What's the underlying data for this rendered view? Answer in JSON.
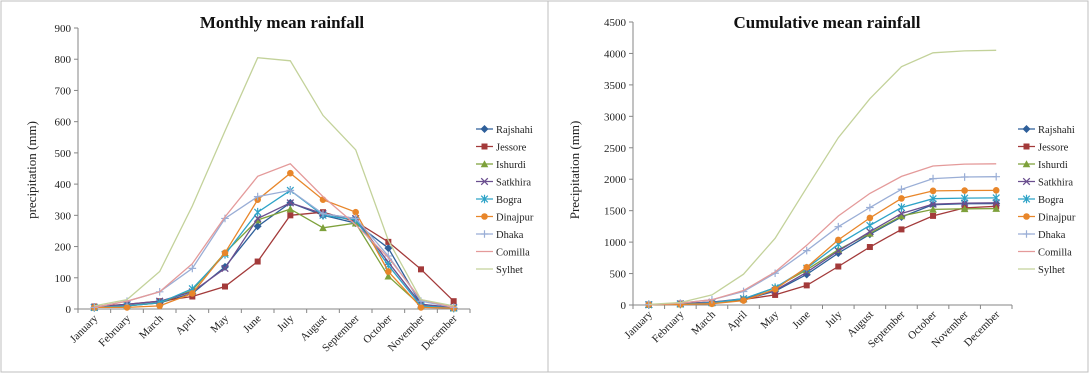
{
  "chart_data": [
    {
      "type": "line",
      "title": "Monthly mean rainfall",
      "ylabel": "precipitation (mm)",
      "ylim": [
        0,
        900
      ],
      "yticks": [
        "0",
        "100",
        "200",
        "300",
        "400",
        "500",
        "600",
        "700",
        "800",
        "900"
      ],
      "categories": [
        "January",
        "February",
        "March",
        "April",
        "May",
        "June",
        "July",
        "August",
        "September",
        "October",
        "November",
        "December"
      ],
      "grid": false,
      "legend": "right",
      "series": [
        {
          "name": "Rajshahi",
          "color": "#2e5f9a",
          "marker": "diamond",
          "values": [
            5,
            10,
            20,
            50,
            135,
            265,
            340,
            300,
            275,
            195,
            15,
            3
          ]
        },
        {
          "name": "Jessore",
          "color": "#a33a3a",
          "marker": "square",
          "values": [
            8,
            15,
            25,
            40,
            72,
            152,
            300,
            310,
            280,
            215,
            127,
            25
          ]
        },
        {
          "name": "Ishurdi",
          "color": "#7ea13b",
          "marker": "triangle",
          "values": [
            5,
            10,
            20,
            60,
            180,
            285,
            320,
            260,
            275,
            105,
            10,
            3
          ]
        },
        {
          "name": "Satkhira",
          "color": "#6b4f8f",
          "marker": "x",
          "values": [
            5,
            15,
            25,
            55,
            130,
            290,
            340,
            305,
            290,
            150,
            15,
            5
          ]
        },
        {
          "name": "Bogra",
          "color": "#2ea3c7",
          "marker": "star",
          "values": [
            5,
            10,
            20,
            65,
            175,
            310,
            380,
            300,
            285,
            140,
            10,
            3
          ]
        },
        {
          "name": "Dinajpur",
          "color": "#e8862a",
          "marker": "circle",
          "values": [
            5,
            5,
            10,
            50,
            180,
            350,
            435,
            350,
            310,
            120,
            5,
            3
          ]
        },
        {
          "name": "Dhaka",
          "color": "#9aaed6",
          "marker": "plus",
          "values": [
            5,
            25,
            55,
            130,
            290,
            360,
            380,
            305,
            290,
            170,
            25,
            5
          ]
        },
        {
          "name": "Comilla",
          "color": "#e49a9a",
          "marker": "none",
          "values": [
            5,
            25,
            55,
            145,
            295,
            425,
            465,
            360,
            270,
            165,
            30,
            5
          ]
        },
        {
          "name": "Sylhet",
          "color": "#c3d29a",
          "marker": "none",
          "values": [
            10,
            30,
            120,
            330,
            570,
            805,
            795,
            620,
            510,
            220,
            30,
            10
          ]
        }
      ]
    },
    {
      "type": "line",
      "title": "Cumulative mean rainfall",
      "ylabel": "Precipitation (mm)",
      "ylim": [
        0,
        4500
      ],
      "yticks": [
        "0",
        "500",
        "1000",
        "1500",
        "2000",
        "2500",
        "3000",
        "3500",
        "4000",
        "4500"
      ],
      "categories": [
        "January",
        "February",
        "March",
        "April",
        "May",
        "June",
        "July",
        "August",
        "September",
        "October",
        "November",
        "December"
      ],
      "grid": false,
      "legend": "right",
      "series": [
        {
          "name": "Rajshahi",
          "color": "#2e5f9a",
          "marker": "diamond",
          "values": [
            5,
            15,
            35,
            85,
            220,
            485,
            825,
            1125,
            1400,
            1595,
            1610,
            1613
          ]
        },
        {
          "name": "Jessore",
          "color": "#a33a3a",
          "marker": "square",
          "values": [
            8,
            23,
            48,
            88,
            160,
            312,
            612,
            922,
            1202,
            1417,
            1544,
            1569
          ]
        },
        {
          "name": "Ishurdi",
          "color": "#7ea13b",
          "marker": "triangle",
          "values": [
            5,
            15,
            35,
            95,
            275,
            560,
            880,
            1140,
            1415,
            1520,
            1530,
            1533
          ]
        },
        {
          "name": "Satkhira",
          "color": "#6b4f8f",
          "marker": "x",
          "values": [
            5,
            20,
            45,
            100,
            230,
            520,
            860,
            1165,
            1455,
            1605,
            1620,
            1625
          ]
        },
        {
          "name": "Bogra",
          "color": "#2ea3c7",
          "marker": "star",
          "values": [
            5,
            15,
            35,
            100,
            275,
            585,
            965,
            1265,
            1550,
            1690,
            1700,
            1703
          ]
        },
        {
          "name": "Dinajpur",
          "color": "#e8862a",
          "marker": "circle",
          "values": [
            5,
            10,
            20,
            70,
            250,
            600,
            1035,
            1385,
            1695,
            1815,
            1820,
            1823
          ]
        },
        {
          "name": "Dhaka",
          "color": "#9aaed6",
          "marker": "plus",
          "values": [
            5,
            30,
            85,
            215,
            505,
            865,
            1245,
            1550,
            1840,
            2010,
            2035,
            2040
          ]
        },
        {
          "name": "Comilla",
          "color": "#e49a9a",
          "marker": "none",
          "values": [
            5,
            30,
            85,
            230,
            525,
            950,
            1415,
            1775,
            2045,
            2210,
            2240,
            2245
          ]
        },
        {
          "name": "Sylhet",
          "color": "#c3d29a",
          "marker": "none",
          "values": [
            10,
            40,
            160,
            490,
            1060,
            1865,
            2660,
            3280,
            3790,
            4010,
            4040,
            4050
          ]
        }
      ]
    }
  ]
}
